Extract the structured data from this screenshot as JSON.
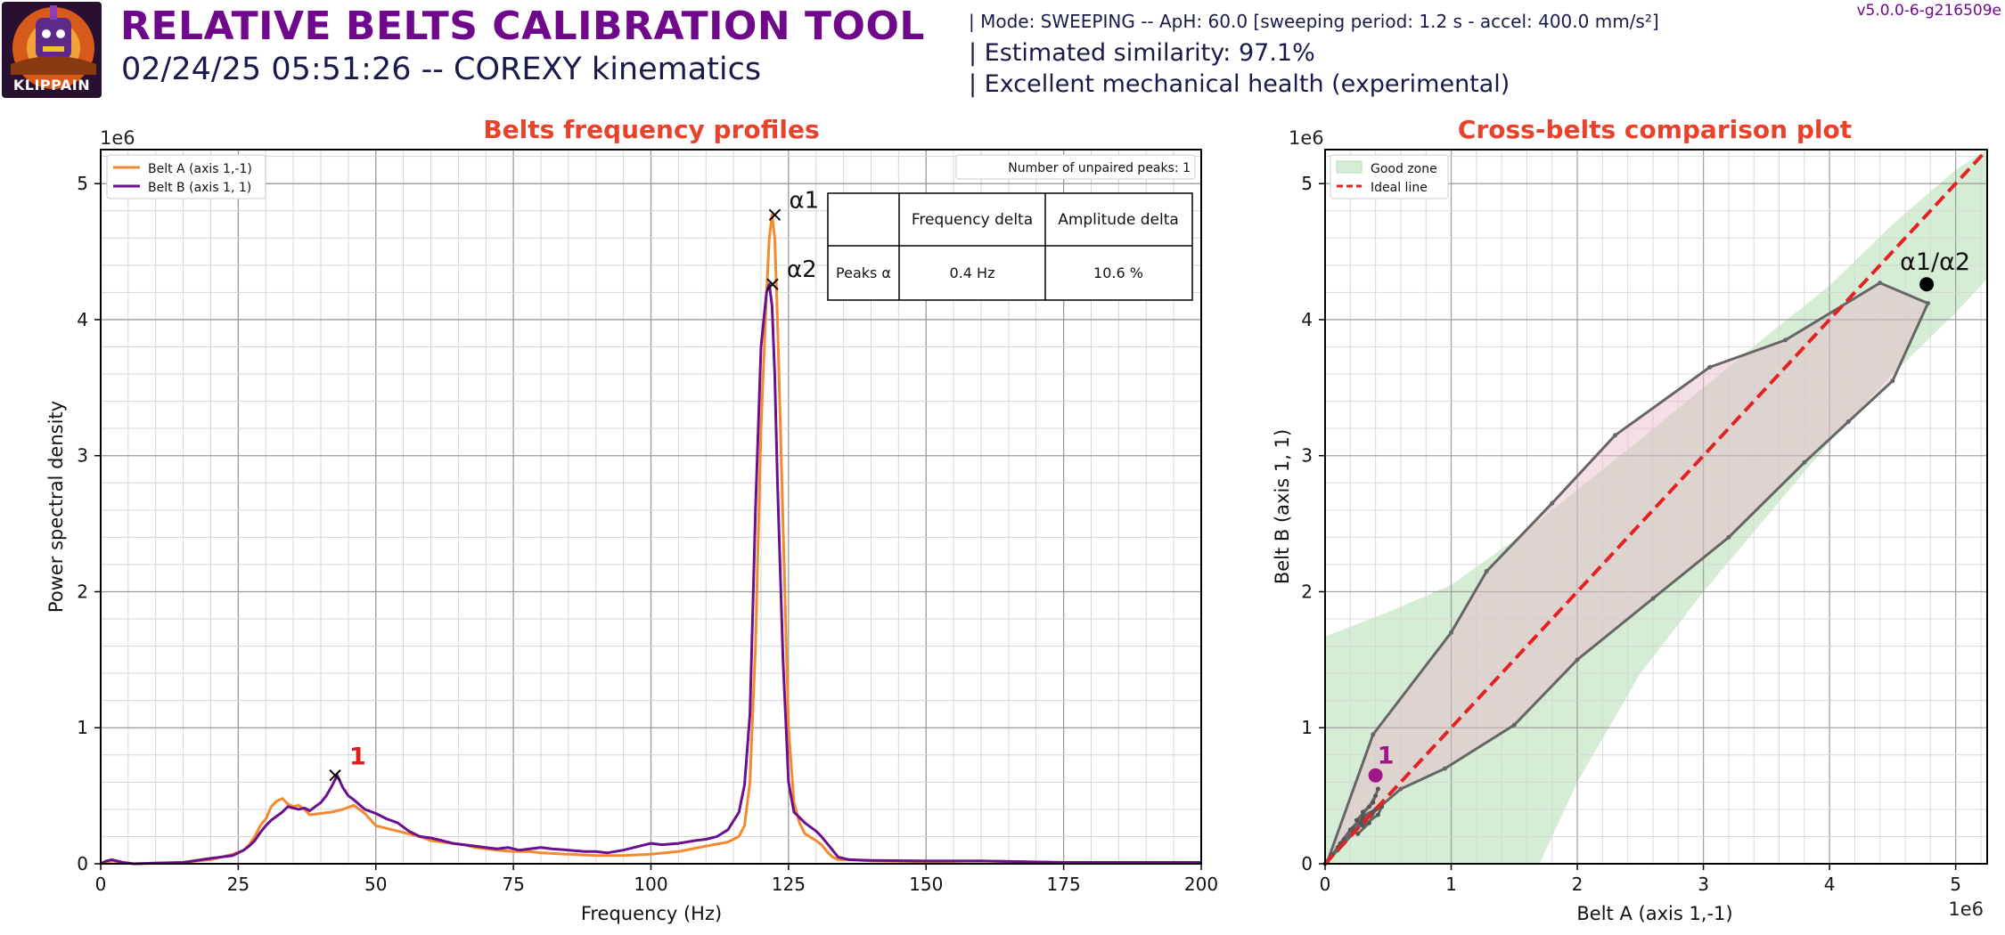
{
  "header": {
    "title": "RELATIVE BELTS CALIBRATION TOOL",
    "subtitle": "02/24/25 05:51:26 -- COREXY kinematics",
    "mode_line": "| Mode: SWEEPING -- ApH: 60.0 [sweeping period: 1.2 s - accel: 400.0 mm/s²]",
    "similarity_line": "| Estimated similarity: 97.1%",
    "health_line": "| Excellent mechanical health (experimental)",
    "version": "v5.0.0-6-g216509e",
    "logo_text": "KLIPPAIN"
  },
  "colors": {
    "title": "#70088c",
    "plot_title": "#e9422c",
    "belt_a": "#f5892e",
    "belt_b": "#6a0f8e",
    "ideal_line": "#e32323",
    "good_zone": "#d5ecd5",
    "peak_label": "#e01b1b",
    "grid_major": "#9a9a9a",
    "grid_minor": "#d6d6d6"
  },
  "chart_data": [
    {
      "type": "line",
      "title": "Belts frequency profiles",
      "xlabel": "Frequency (Hz)",
      "ylabel": "Power spectral density",
      "y_scale_label": "1e6",
      "xlim": [
        0,
        200
      ],
      "ylim": [
        0,
        5.25
      ],
      "xticks": [
        0,
        25,
        50,
        75,
        100,
        125,
        150,
        175,
        200
      ],
      "yticks": [
        0,
        1,
        2,
        3,
        4,
        5
      ],
      "grid": true,
      "legend_position": "top-left",
      "series": [
        {
          "name": "Belt A (axis 1,-1)",
          "color": "#f5892e",
          "x": [
            0,
            1,
            2,
            4,
            6,
            10,
            15,
            20,
            24,
            26,
            27,
            28,
            29,
            30,
            31,
            32,
            33,
            34,
            35,
            36,
            37,
            38,
            40,
            42,
            44,
            46,
            48,
            50,
            52,
            54,
            56,
            58,
            60,
            62,
            64,
            66,
            68,
            70,
            72,
            75,
            78,
            80,
            85,
            90,
            95,
            100,
            105,
            110,
            114,
            116,
            117,
            118,
            119,
            120,
            121,
            121.5,
            122,
            122.5,
            123,
            124,
            125,
            126,
            127,
            128,
            130,
            131,
            132,
            133,
            134,
            136,
            140,
            150,
            160,
            175,
            200
          ],
          "y": [
            0.0,
            0.01,
            0.02,
            0.01,
            0.0,
            0.005,
            0.01,
            0.03,
            0.07,
            0.1,
            0.14,
            0.2,
            0.28,
            0.33,
            0.42,
            0.46,
            0.48,
            0.44,
            0.42,
            0.43,
            0.4,
            0.36,
            0.37,
            0.38,
            0.4,
            0.43,
            0.37,
            0.28,
            0.26,
            0.24,
            0.22,
            0.2,
            0.17,
            0.16,
            0.15,
            0.14,
            0.12,
            0.11,
            0.1,
            0.09,
            0.09,
            0.08,
            0.07,
            0.06,
            0.06,
            0.07,
            0.09,
            0.13,
            0.16,
            0.2,
            0.28,
            0.6,
            1.6,
            3.2,
            4.2,
            4.6,
            4.77,
            4.6,
            4.0,
            2.5,
            1.0,
            0.45,
            0.3,
            0.22,
            0.17,
            0.14,
            0.09,
            0.05,
            0.03,
            0.03,
            0.02,
            0.015,
            0.02,
            0.01,
            0.01
          ]
        },
        {
          "name": "Belt B (axis 1, 1)",
          "color": "#6a0f8e",
          "x": [
            0,
            1,
            2,
            4,
            6,
            10,
            15,
            20,
            24,
            26,
            27,
            28,
            29,
            30,
            31,
            32,
            33,
            34,
            35,
            36,
            37,
            38,
            39,
            40,
            41,
            42,
            43,
            44,
            45,
            46,
            48,
            50,
            52,
            54,
            56,
            58,
            60,
            62,
            64,
            66,
            68,
            70,
            72,
            74,
            76,
            78,
            80,
            82,
            85,
            88,
            90,
            92,
            95,
            98,
            100,
            102,
            105,
            108,
            110,
            112,
            114,
            116,
            117,
            118,
            119,
            120,
            121,
            121.5,
            122,
            122.5,
            123,
            124,
            125,
            126,
            127,
            128,
            129,
            130,
            131,
            132,
            133,
            134,
            136,
            140,
            150,
            160,
            175,
            200
          ],
          "y": [
            0.0,
            0.02,
            0.03,
            0.01,
            0.0,
            0.005,
            0.01,
            0.04,
            0.06,
            0.1,
            0.13,
            0.17,
            0.23,
            0.28,
            0.32,
            0.35,
            0.38,
            0.42,
            0.41,
            0.4,
            0.41,
            0.39,
            0.42,
            0.45,
            0.5,
            0.57,
            0.65,
            0.56,
            0.5,
            0.47,
            0.4,
            0.37,
            0.33,
            0.3,
            0.24,
            0.2,
            0.19,
            0.17,
            0.15,
            0.14,
            0.13,
            0.12,
            0.11,
            0.12,
            0.1,
            0.11,
            0.12,
            0.11,
            0.1,
            0.09,
            0.09,
            0.08,
            0.1,
            0.13,
            0.15,
            0.14,
            0.15,
            0.17,
            0.18,
            0.2,
            0.25,
            0.38,
            0.58,
            1.1,
            2.6,
            3.8,
            4.2,
            4.26,
            4.1,
            3.6,
            2.8,
            1.5,
            0.6,
            0.38,
            0.34,
            0.3,
            0.27,
            0.24,
            0.2,
            0.15,
            0.1,
            0.05,
            0.03,
            0.025,
            0.02,
            0.02,
            0.01,
            0.01
          ]
        }
      ],
      "peaks": [
        {
          "label": "α1",
          "x": 122.5,
          "y": 4.77
        },
        {
          "label": "α2",
          "x": 122.1,
          "y": 4.26
        },
        {
          "label": "1",
          "x": 42.6,
          "y": 0.65
        }
      ],
      "unpaired_legend": "Number of unpaired peaks: 1",
      "table": {
        "headers": [
          "",
          "Frequency delta",
          "Amplitude delta"
        ],
        "rows": [
          [
            "Peaks α",
            "0.4 Hz",
            "10.6 %"
          ]
        ]
      }
    },
    {
      "type": "scatter",
      "title": "Cross-belts comparison plot",
      "xlabel": "Belt A (axis 1,-1)",
      "ylabel": "Belt B (axis 1, 1)",
      "x_scale_label": "1e6",
      "y_scale_label": "1e6",
      "xlim": [
        0,
        5.25
      ],
      "ylim": [
        0,
        5.25
      ],
      "xticks": [
        0,
        1,
        2,
        3,
        4,
        5
      ],
      "yticks": [
        0,
        1,
        2,
        3,
        4,
        5
      ],
      "grid": true,
      "legend_position": "top-left",
      "legend": [
        "Good zone",
        "Ideal line"
      ],
      "ideal_line": {
        "x": [
          0,
          5.25
        ],
        "y": [
          0,
          5.25
        ]
      },
      "good_zone": {
        "upper_x": [
          0,
          0.5,
          1.0,
          1.5,
          2.0,
          2.5,
          3.0,
          3.5,
          4.0,
          4.5,
          5.0,
          5.25
        ],
        "upper_y": [
          1.67,
          1.85,
          2.05,
          2.38,
          2.75,
          3.12,
          3.5,
          3.88,
          4.25,
          4.7,
          5.1,
          5.35
        ],
        "lower_x": [
          0,
          1.7,
          2.0,
          2.5,
          3.0,
          3.5,
          4.0,
          4.5,
          5.0,
          5.25
        ],
        "lower_y": [
          0,
          0,
          0.6,
          1.4,
          2.0,
          2.55,
          3.1,
          3.6,
          4.05,
          4.3
        ]
      },
      "envelope": {
        "x": [
          0.02,
          0.38,
          1.0,
          1.28,
          1.8,
          2.3,
          3.05,
          3.65,
          4.4,
          4.78,
          4.5,
          4.15,
          3.8,
          3.2,
          2.6,
          2.0,
          1.5,
          0.95,
          0.6,
          0.35,
          0.1,
          0.02
        ],
        "y": [
          0.02,
          0.95,
          1.7,
          2.15,
          2.65,
          3.15,
          3.65,
          3.85,
          4.27,
          4.12,
          3.55,
          3.25,
          2.95,
          2.4,
          1.95,
          1.5,
          1.02,
          0.7,
          0.55,
          0.35,
          0.1,
          0.02
        ]
      },
      "trace": {
        "x": [
          0.0,
          0.05,
          0.1,
          0.15,
          0.22,
          0.28,
          0.3,
          0.35,
          0.4,
          0.42,
          0.38,
          0.25,
          0.3,
          0.42,
          0.45,
          0.38,
          0.3,
          0.22,
          0.26,
          0.35,
          0.4,
          0.3,
          0.2,
          0.12,
          0.06,
          0.02
        ],
        "y": [
          0.0,
          0.06,
          0.12,
          0.18,
          0.24,
          0.3,
          0.38,
          0.42,
          0.5,
          0.55,
          0.45,
          0.32,
          0.28,
          0.36,
          0.42,
          0.38,
          0.32,
          0.26,
          0.22,
          0.3,
          0.4,
          0.35,
          0.25,
          0.15,
          0.07,
          0.02
        ]
      },
      "points": [
        {
          "label": "α1/α2",
          "x": 4.77,
          "y": 4.26,
          "color": "#000000"
        },
        {
          "label": "1",
          "x": 0.4,
          "y": 0.65,
          "color": "#a0168a"
        }
      ]
    }
  ]
}
